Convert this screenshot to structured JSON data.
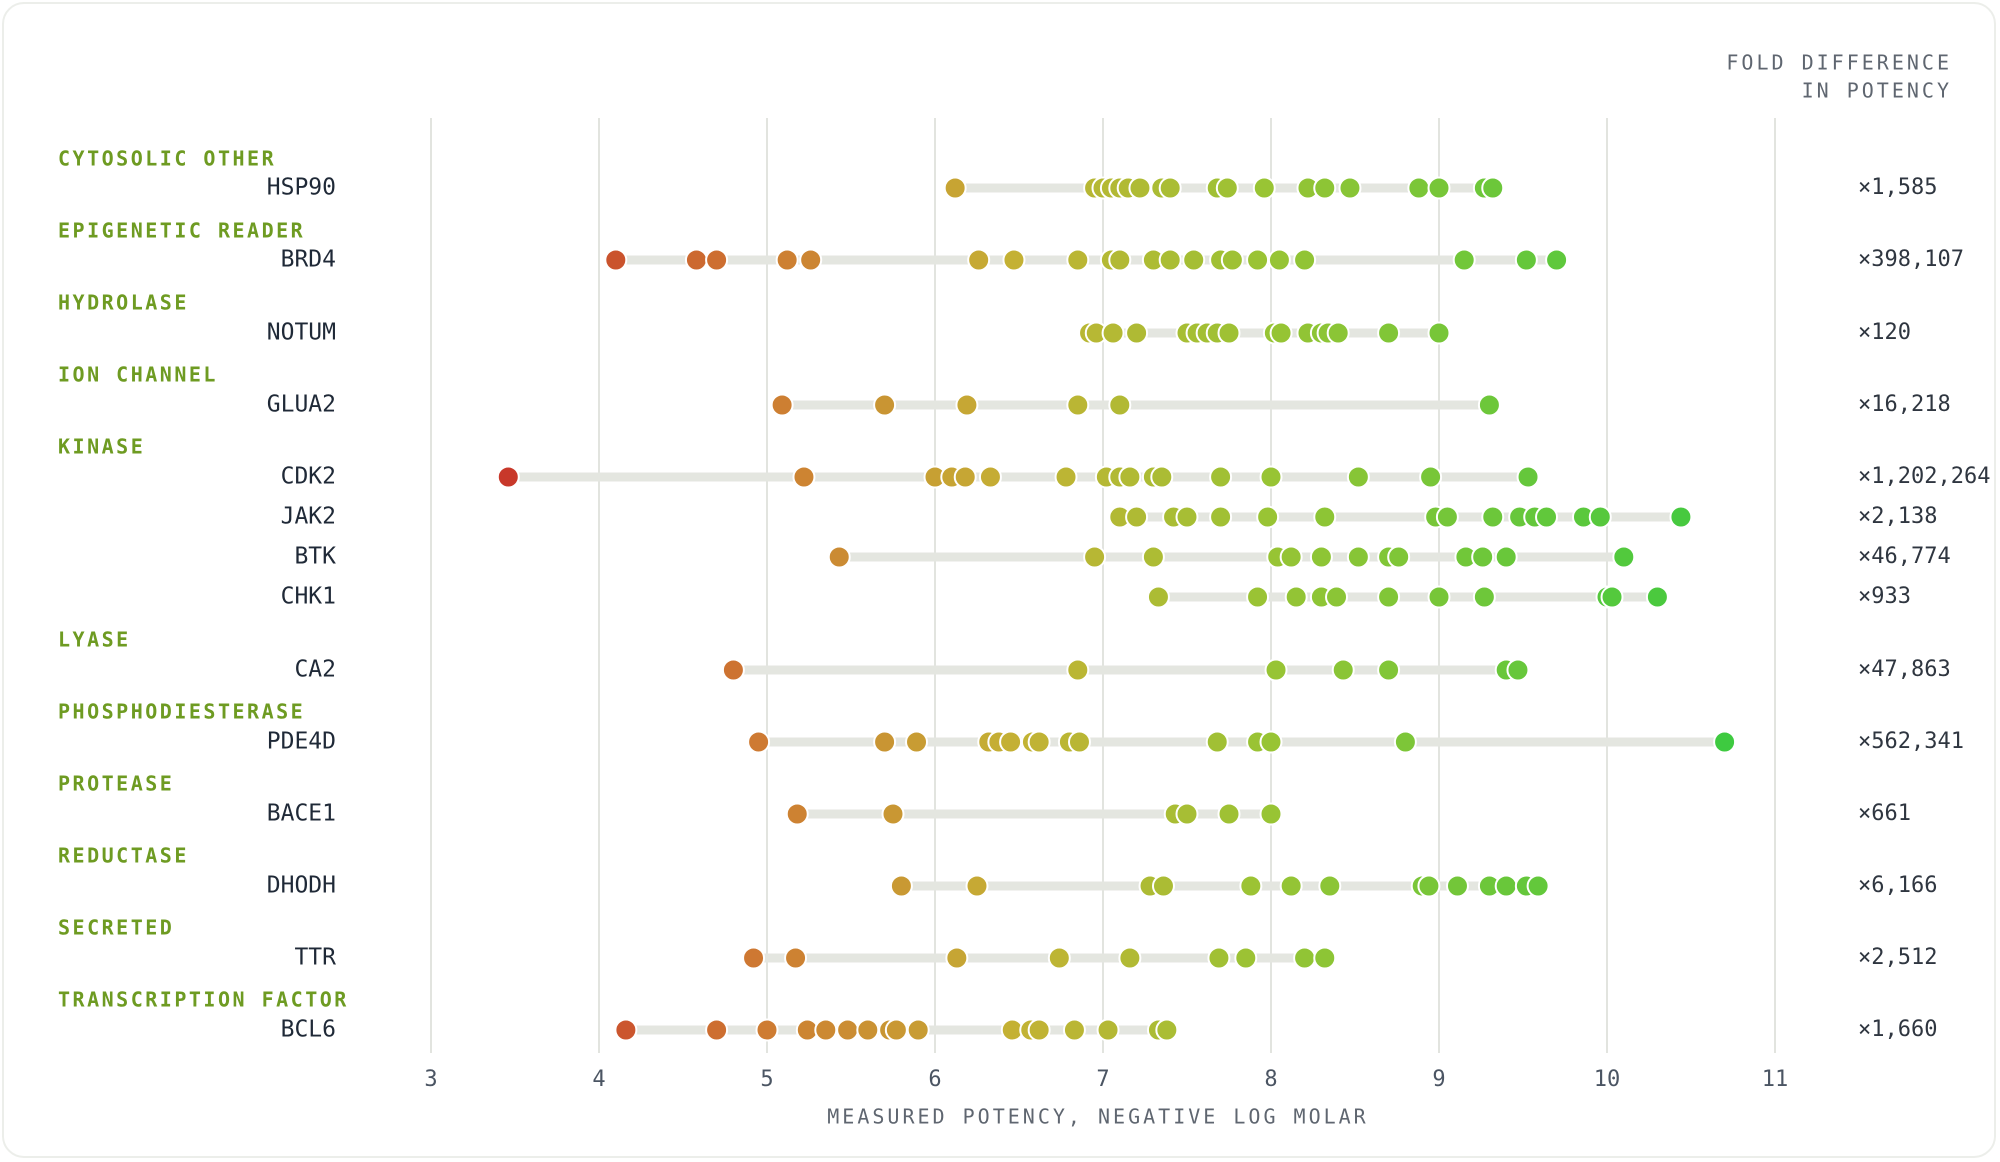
{
  "chart_data": {
    "type": "scatter",
    "title": "",
    "xlabel": "MEASURED POTENCY, NEGATIVE LOG MOLAR",
    "fold_header": [
      "FOLD DIFFERENCE",
      "IN POTENCY"
    ],
    "xlim": [
      3,
      11
    ],
    "xticks": [
      "3",
      "4",
      "5",
      "6",
      "7",
      "8",
      "9",
      "10",
      "11"
    ],
    "grid": true,
    "groups": [
      {
        "category": "CYTOSOLIC OTHER",
        "targets": [
          {
            "name": "HSP90",
            "fold": "×1,585",
            "values": [
              6.12,
              6.95,
              7.0,
              7.05,
              7.1,
              7.15,
              7.22,
              7.35,
              7.4,
              7.68,
              7.74,
              7.96,
              8.22,
              8.32,
              8.47,
              8.88,
              9.0,
              9.27,
              9.32
            ]
          }
        ]
      },
      {
        "category": "EPIGENETIC READER",
        "targets": [
          {
            "name": "BRD4",
            "fold": "×398,107",
            "values": [
              4.1,
              4.58,
              4.7,
              5.12,
              5.26,
              6.26,
              6.47,
              6.85,
              7.05,
              7.1,
              7.3,
              7.4,
              7.54,
              7.7,
              7.77,
              7.92,
              8.05,
              8.2,
              9.15,
              9.52,
              9.7
            ]
          }
        ]
      },
      {
        "category": "HYDROLASE",
        "targets": [
          {
            "name": "NOTUM",
            "fold": "×120",
            "values": [
              6.92,
              6.96,
              7.06,
              7.2,
              7.5,
              7.56,
              7.62,
              7.68,
              7.75,
              8.02,
              8.06,
              8.22,
              8.3,
              8.34,
              8.4,
              8.7,
              9.0
            ]
          }
        ]
      },
      {
        "category": "ION CHANNEL",
        "targets": [
          {
            "name": "GLUA2",
            "fold": "×16,218",
            "values": [
              5.09,
              5.7,
              6.19,
              6.85,
              7.1,
              9.3
            ]
          }
        ]
      },
      {
        "category": "KINASE",
        "targets": [
          {
            "name": "CDK2",
            "fold": "×1,202,264",
            "values": [
              3.46,
              5.22,
              6.0,
              6.1,
              6.18,
              6.33,
              6.78,
              7.02,
              7.1,
              7.16,
              7.3,
              7.35,
              7.7,
              8.0,
              8.52,
              8.95,
              9.53
            ]
          },
          {
            "name": "JAK2",
            "fold": "×2,138",
            "values": [
              7.1,
              7.2,
              7.42,
              7.5,
              7.7,
              7.98,
              8.32,
              8.98,
              9.05,
              9.32,
              9.48,
              9.57,
              9.64,
              9.86,
              9.96,
              10.44
            ]
          },
          {
            "name": "BTK",
            "fold": "×46,774",
            "values": [
              5.43,
              6.95,
              7.3,
              8.04,
              8.12,
              8.3,
              8.52,
              8.7,
              8.76,
              9.16,
              9.26,
              9.4,
              10.1
            ]
          },
          {
            "name": "CHK1",
            "fold": "×933",
            "values": [
              7.33,
              7.92,
              8.15,
              8.3,
              8.39,
              8.7,
              9.0,
              9.27,
              10.0,
              10.03,
              10.3
            ]
          }
        ]
      },
      {
        "category": "LYASE",
        "targets": [
          {
            "name": "CA2",
            "fold": "×47,863",
            "values": [
              4.8,
              6.85,
              8.03,
              8.43,
              8.7,
              9.4,
              9.47
            ]
          }
        ]
      },
      {
        "category": "PHOSPHODIESTERASE",
        "targets": [
          {
            "name": "PDE4D",
            "fold": "×562,341",
            "values": [
              4.95,
              5.7,
              5.89,
              6.32,
              6.38,
              6.45,
              6.58,
              6.62,
              6.8,
              6.86,
              7.68,
              7.92,
              8.0,
              8.8,
              10.7
            ]
          }
        ]
      },
      {
        "category": "PROTEASE",
        "targets": [
          {
            "name": "BACE1",
            "fold": "×661",
            "values": [
              5.18,
              5.75,
              7.43,
              7.5,
              7.75,
              8.0
            ]
          }
        ]
      },
      {
        "category": "REDUCTASE",
        "targets": [
          {
            "name": "DHODH",
            "fold": "×6,166",
            "values": [
              5.8,
              6.25,
              7.28,
              7.36,
              7.88,
              8.12,
              8.35,
              8.9,
              8.94,
              9.11,
              9.3,
              9.4,
              9.52,
              9.59
            ]
          }
        ]
      },
      {
        "category": "SECRETED",
        "targets": [
          {
            "name": "TTR",
            "fold": "×2,512",
            "values": [
              4.92,
              5.17,
              6.13,
              6.74,
              7.16,
              7.69,
              7.85,
              8.2,
              8.32
            ]
          }
        ]
      },
      {
        "category": "TRANSCRIPTION FACTOR",
        "targets": [
          {
            "name": "BCL6",
            "fold": "×1,660",
            "values": [
              4.16,
              4.7,
              5.0,
              5.24,
              5.35,
              5.48,
              5.6,
              5.73,
              5.77,
              5.9,
              6.46,
              6.57,
              6.62,
              6.83,
              7.03,
              7.33,
              7.38
            ]
          }
        ]
      }
    ]
  }
}
